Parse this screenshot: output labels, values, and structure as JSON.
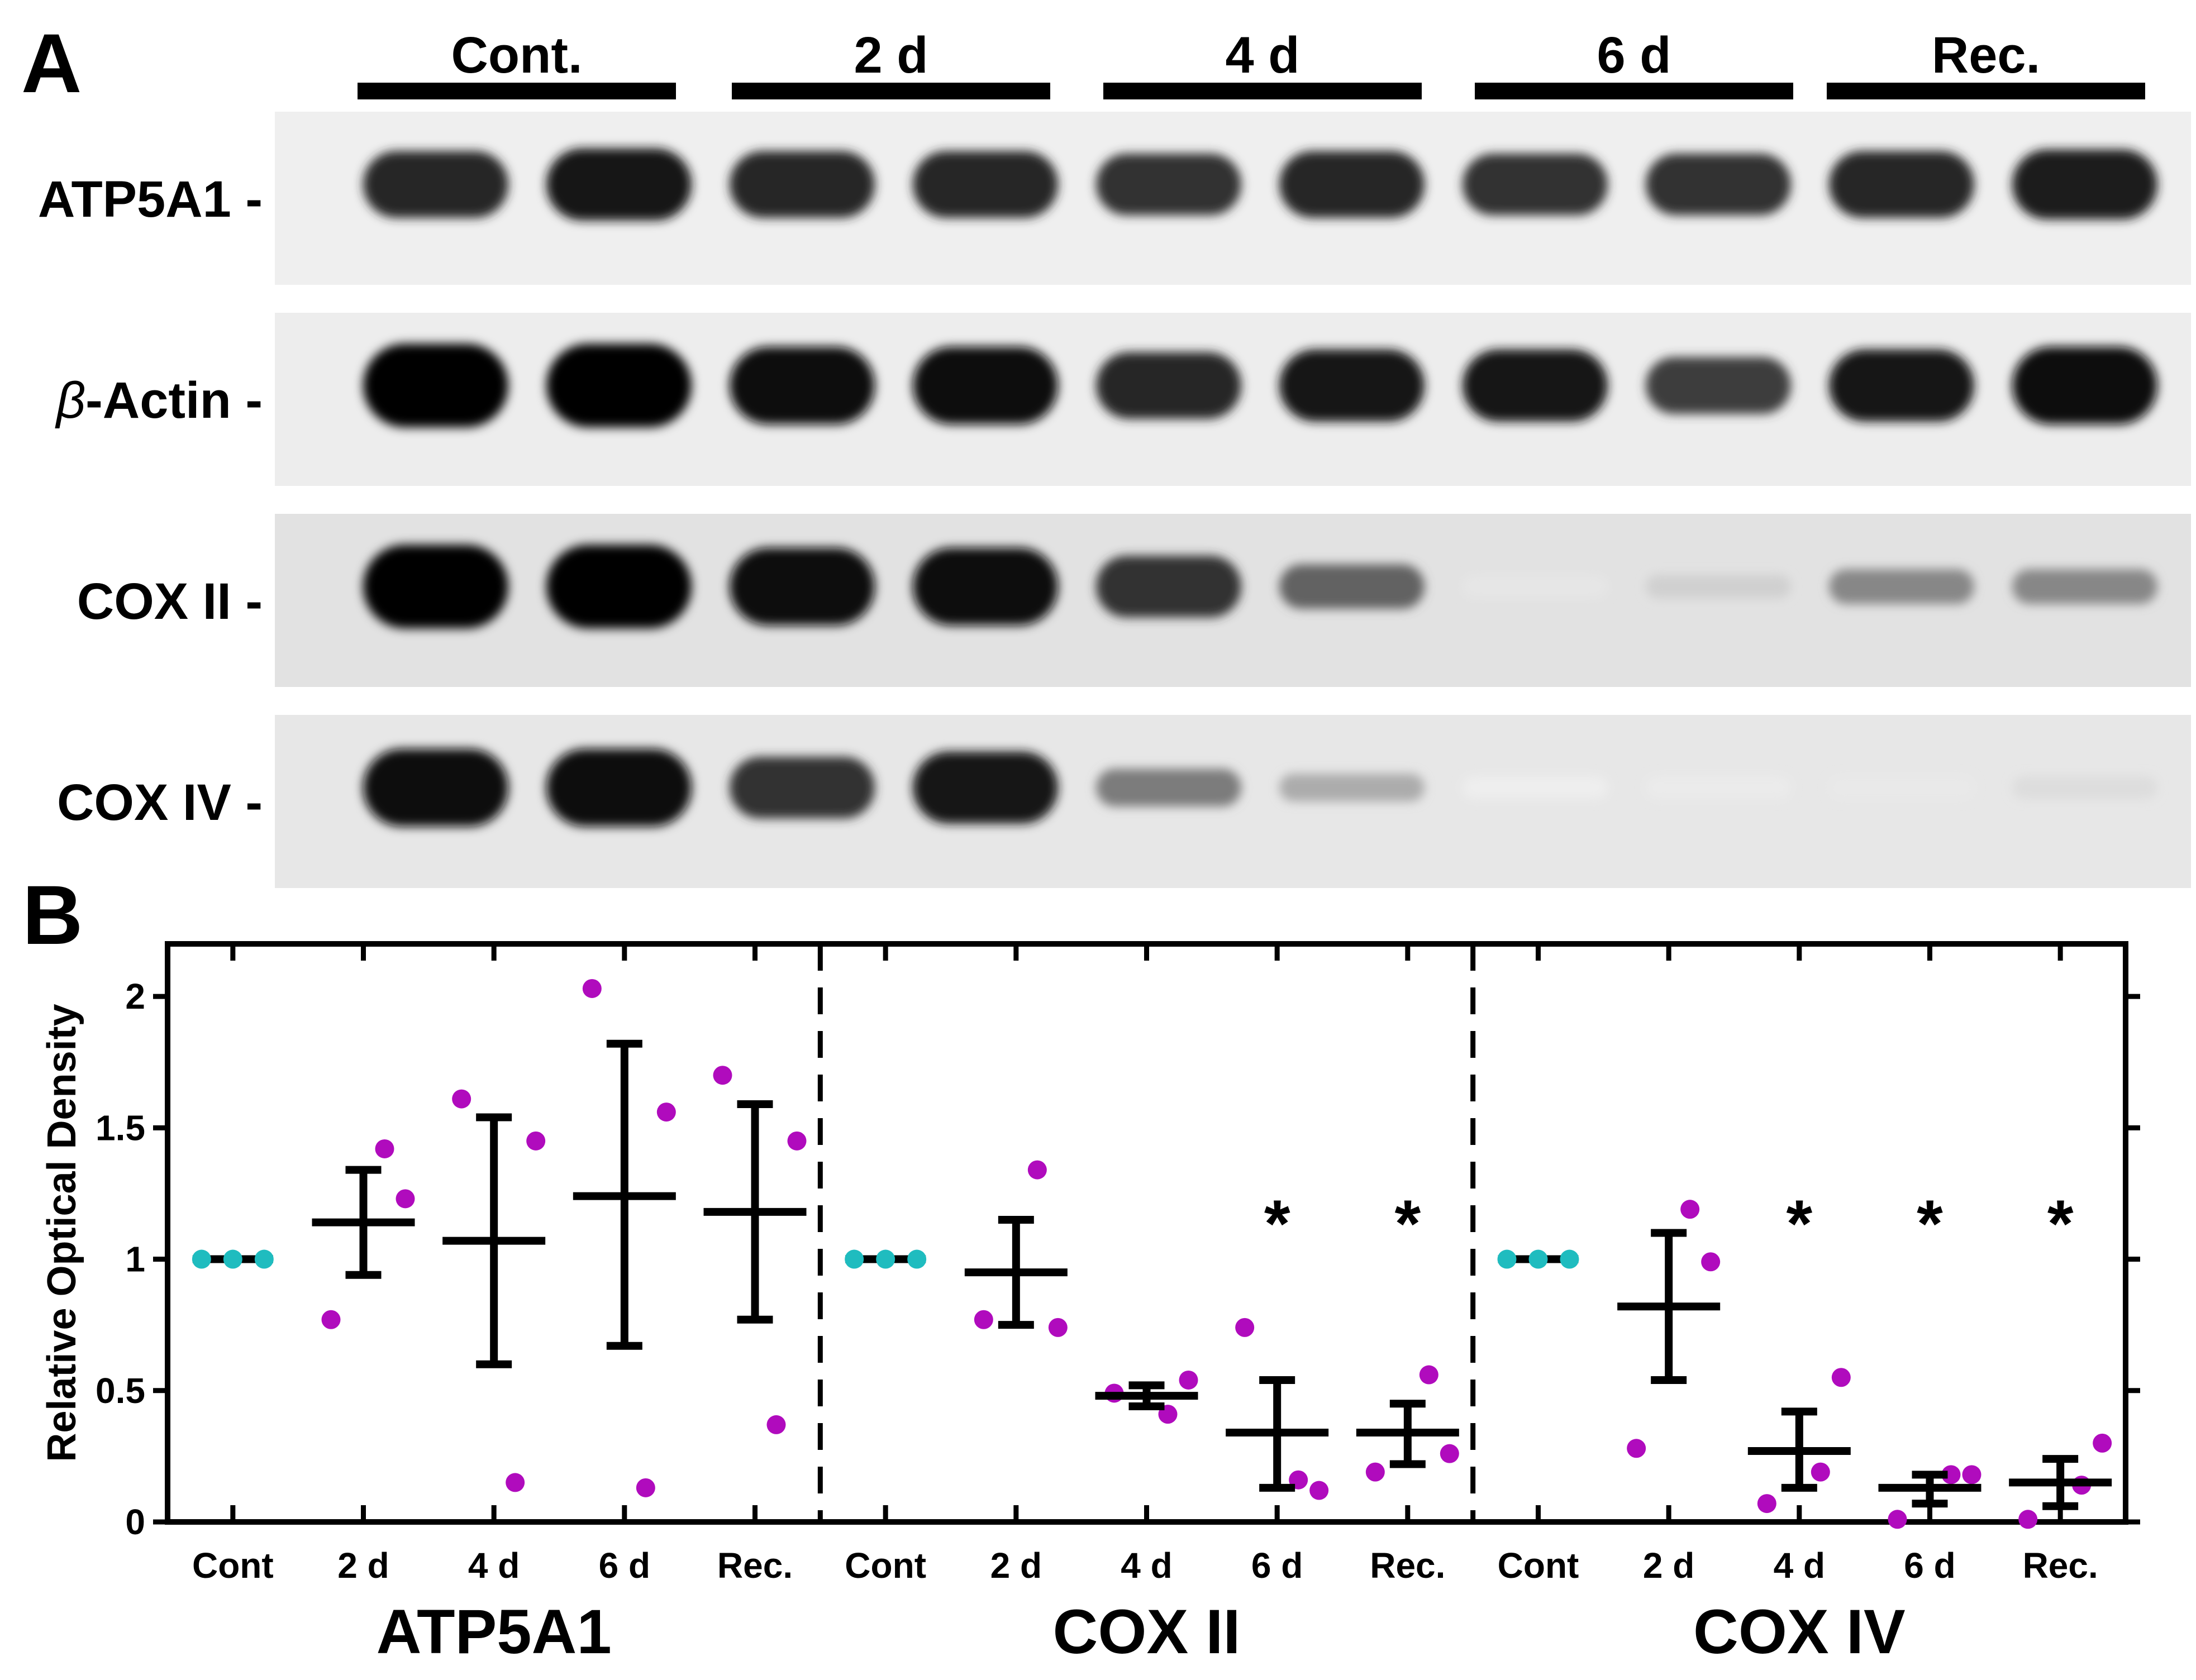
{
  "panels": {
    "a_label": "A",
    "b_label": "B"
  },
  "blot": {
    "groups": [
      "Cont.",
      "2 d",
      "4 d",
      "6 d",
      "Rec."
    ],
    "lanes_per_group": 2,
    "rows": [
      {
        "label": "ATP5A1 -",
        "intensities": [
          0.85,
          0.9,
          0.85,
          0.85,
          0.8,
          0.85,
          0.8,
          0.8,
          0.85,
          0.88
        ]
      },
      {
        "label": "-Actin -",
        "greek_prefix": "β",
        "intensities": [
          1.0,
          1.0,
          0.95,
          0.95,
          0.85,
          0.9,
          0.9,
          0.75,
          0.9,
          0.95
        ]
      },
      {
        "label": "COX II -",
        "intensities": [
          1.0,
          1.0,
          0.95,
          0.95,
          0.8,
          0.6,
          0.06,
          0.15,
          0.45,
          0.45
        ]
      },
      {
        "label": "COX IV -",
        "intensities": [
          0.95,
          0.95,
          0.8,
          0.9,
          0.5,
          0.3,
          0.03,
          0.04,
          0.05,
          0.1
        ]
      }
    ]
  },
  "chart_data": {
    "type": "scatter",
    "ylabel": "Relative Optical Density",
    "ylim": [
      0,
      2.2
    ],
    "yticks": [
      0,
      0.5,
      1,
      1.5,
      2
    ],
    "ytick_labels": [
      "0",
      "0.5",
      "1",
      "1.5",
      "2"
    ],
    "categories": [
      "Cont",
      "2 d",
      "4 d",
      "6 d",
      "Rec."
    ],
    "colors": {
      "control": "#1fbcbf",
      "treated": "#b00bbd",
      "summary": "#000000"
    },
    "significance_marker": "*",
    "sections": [
      {
        "name": "ATP5A1",
        "groups": [
          {
            "category": "Cont",
            "points": [
              1,
              1,
              1
            ],
            "mean": 1.0,
            "err_low": 1.0,
            "err_high": 1.0,
            "significant": false
          },
          {
            "category": "2 d",
            "points": [
              0.77,
              1.42,
              1.23
            ],
            "mean": 1.14,
            "err_low": 0.94,
            "err_high": 1.34,
            "significant": false
          },
          {
            "category": "4 d",
            "points": [
              1.61,
              0.15,
              1.45
            ],
            "mean": 1.07,
            "err_low": 0.6,
            "err_high": 1.54,
            "significant": false
          },
          {
            "category": "6 d",
            "points": [
              2.03,
              0.13,
              1.56
            ],
            "mean": 1.24,
            "err_low": 0.67,
            "err_high": 1.82,
            "significant": false
          },
          {
            "category": "Rec.",
            "points": [
              1.7,
              0.37,
              1.45
            ],
            "mean": 1.18,
            "err_low": 0.77,
            "err_high": 1.59,
            "significant": false
          }
        ]
      },
      {
        "name": "COX II",
        "groups": [
          {
            "category": "Cont",
            "points": [
              1,
              1,
              1
            ],
            "mean": 1.0,
            "err_low": 1.0,
            "err_high": 1.0,
            "significant": false
          },
          {
            "category": "2 d",
            "points": [
              0.77,
              1.34,
              0.74
            ],
            "mean": 0.95,
            "err_low": 0.75,
            "err_high": 1.15,
            "significant": false
          },
          {
            "category": "4 d",
            "points": [
              0.49,
              0.41,
              0.54
            ],
            "mean": 0.48,
            "err_low": 0.44,
            "err_high": 0.52,
            "significant": false
          },
          {
            "category": "6 d",
            "points": [
              0.74,
              0.16,
              0.12
            ],
            "mean": 0.34,
            "err_low": 0.13,
            "err_high": 0.54,
            "significant": true
          },
          {
            "category": "Rec.",
            "points": [
              0.19,
              0.56,
              0.26
            ],
            "mean": 0.34,
            "err_low": 0.22,
            "err_high": 0.45,
            "significant": true
          }
        ]
      },
      {
        "name": "COX IV",
        "groups": [
          {
            "category": "Cont",
            "points": [
              1,
              1,
              1
            ],
            "mean": 1.0,
            "err_low": 1.0,
            "err_high": 1.0,
            "significant": false
          },
          {
            "category": "2 d",
            "points": [
              0.28,
              1.19,
              0.99
            ],
            "mean": 0.82,
            "err_low": 0.54,
            "err_high": 1.1,
            "significant": false
          },
          {
            "category": "4 d",
            "points": [
              0.07,
              0.19,
              0.55
            ],
            "mean": 0.27,
            "err_low": 0.13,
            "err_high": 0.42,
            "significant": true
          },
          {
            "category": "6 d",
            "points": [
              0.01,
              0.18,
              0.18
            ],
            "mean": 0.13,
            "err_low": 0.07,
            "err_high": 0.18,
            "significant": true
          },
          {
            "category": "Rec.",
            "points": [
              0.01,
              0.14,
              0.3
            ],
            "mean": 0.15,
            "err_low": 0.06,
            "err_high": 0.24,
            "significant": true
          }
        ]
      }
    ]
  }
}
